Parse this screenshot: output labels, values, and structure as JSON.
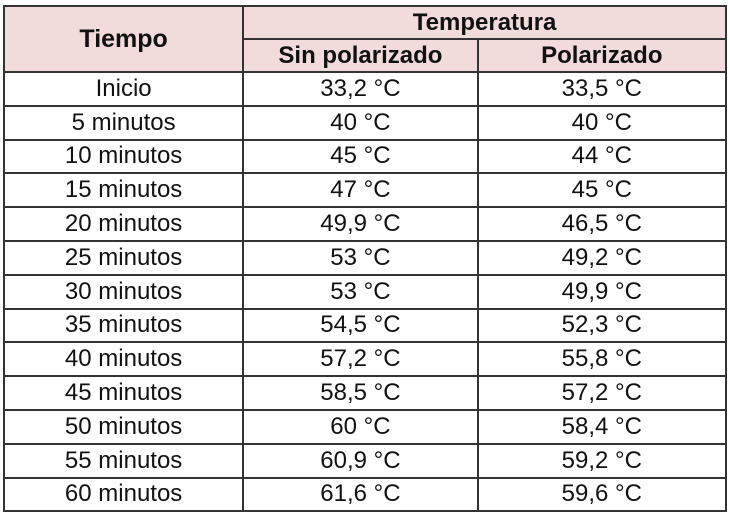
{
  "table": {
    "header": {
      "time": "Tiempo",
      "group": "Temperatura",
      "columns": [
        "Sin polarizado",
        "Polarizado"
      ]
    },
    "rows": [
      [
        "Inicio",
        "33,2 °C",
        "33,5 °C"
      ],
      [
        "5 minutos",
        "40 °C",
        "40 °C"
      ],
      [
        "10 minutos",
        "45 °C",
        "44 °C"
      ],
      [
        "15 minutos",
        "47 °C",
        "45 °C"
      ],
      [
        "20 minutos",
        "49,9 °C",
        "46,5 °C"
      ],
      [
        "25 minutos",
        "53 °C",
        "49,2 °C"
      ],
      [
        "30 minutos",
        "53 °C",
        "49,9 °C"
      ],
      [
        "35 minutos",
        "54,5 °C",
        "52,3 °C"
      ],
      [
        "40 minutos",
        "57,2 °C",
        "55,8 °C"
      ],
      [
        "45 minutos",
        "58,5 °C",
        "57,2 °C"
      ],
      [
        "50 minutos",
        "60 °C",
        "58,4 °C"
      ],
      [
        "55 minutos",
        "60,9 °C",
        "59,2 °C"
      ],
      [
        "60 minutos",
        "61,6 °C",
        "59,6 °C"
      ]
    ]
  }
}
